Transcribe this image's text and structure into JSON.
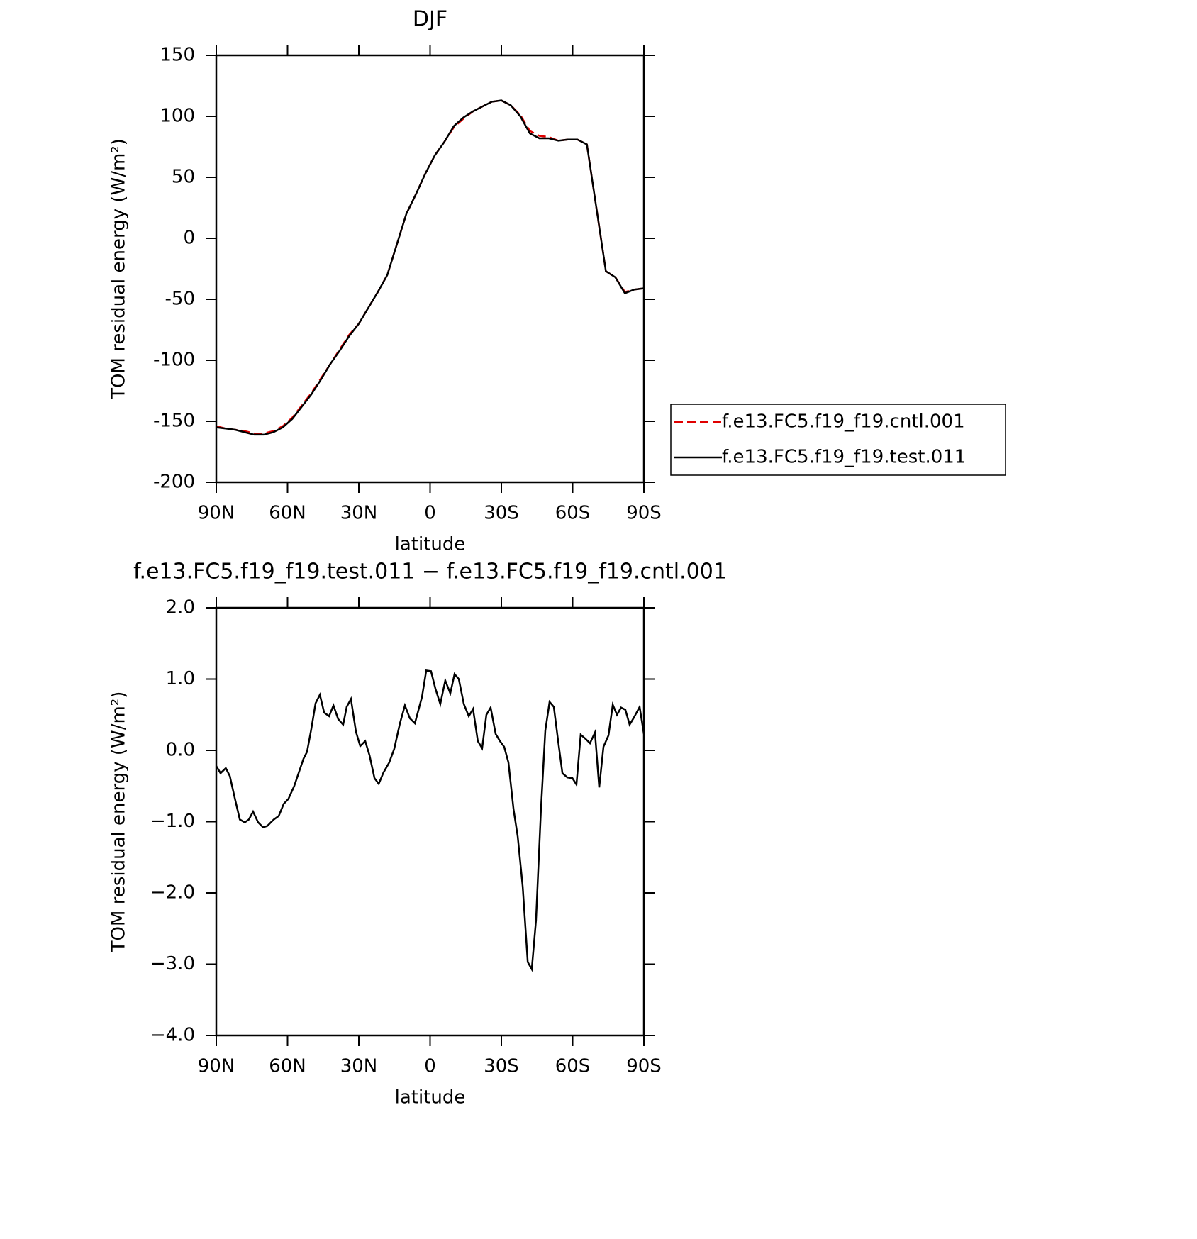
{
  "chart_data": [
    {
      "type": "line",
      "title": "DJF",
      "xlabel": "latitude",
      "ylabel": "TOM residual energy (W/m²)",
      "x": [
        90,
        86,
        82,
        78,
        74,
        70,
        66,
        62,
        58,
        54,
        50,
        46,
        42,
        38,
        34,
        30,
        26,
        22,
        18,
        14,
        10,
        6,
        2,
        -2,
        -6,
        -10,
        -14,
        -18,
        -22,
        -26,
        -30,
        -34,
        -38,
        -42,
        -46,
        -50,
        -54,
        -58,
        -62,
        -66,
        -70,
        -74,
        -78,
        -82,
        -86,
        -90
      ],
      "series": [
        {
          "name": "f.e13.FC5.f19_f19.cntl.001",
          "color": "#e00000",
          "dash": true,
          "values": [
            -154,
            -156,
            -157,
            -158,
            -160,
            -160,
            -158,
            -154,
            -147,
            -137,
            -127,
            -115,
            -103,
            -91,
            -79,
            -70,
            -57,
            -44,
            -30,
            -5,
            20,
            36,
            53,
            68,
            79,
            91,
            98,
            104,
            108,
            112,
            113,
            109,
            101,
            88,
            84,
            83,
            80,
            81,
            81,
            77,
            25,
            -27,
            -32,
            -44,
            -42,
            -41
          ]
        },
        {
          "name": "f.e13.FC5.f19_f19.test.011",
          "color": "#000000",
          "dash": false,
          "values": [
            -155,
            -156,
            -157,
            -159,
            -161,
            -161,
            -159,
            -155,
            -148,
            -138,
            -128,
            -116,
            -103,
            -92,
            -80,
            -70,
            -57,
            -44,
            -30,
            -5,
            20,
            36,
            53,
            68,
            79,
            92,
            99,
            104,
            108,
            112,
            113,
            109,
            100,
            86,
            82,
            82,
            80,
            81,
            81,
            77,
            25,
            -27,
            -32,
            -45,
            -42,
            -41
          ]
        }
      ],
      "xlim": [
        90,
        -90
      ],
      "xticks": [
        {
          "value": 90,
          "label": "90N"
        },
        {
          "value": 60,
          "label": "60N"
        },
        {
          "value": 30,
          "label": "30N"
        },
        0,
        {
          "value": -30,
          "label": "30S"
        },
        {
          "value": -60,
          "label": "60S"
        },
        {
          "value": -90,
          "label": "90S"
        }
      ],
      "ylim": [
        -200,
        150
      ],
      "yticks": [
        -200,
        -150,
        -100,
        -50,
        0,
        50,
        100,
        150
      ],
      "legend": "right"
    },
    {
      "type": "line",
      "title": "f.e13.FC5.f19_f19.test.011 − f.e13.FC5.f19_f19.cntl.001",
      "xlabel": "latitude",
      "ylabel": "TOM residual energy (W/m²)",
      "x": [
        90,
        88.2,
        86,
        84.3,
        82.2,
        80.1,
        78,
        76.3,
        74.5,
        72.4,
        70.3,
        68.5,
        65.8,
        63.7,
        61.6,
        59.6,
        57.2,
        53.3,
        51.8,
        50,
        48.2,
        46.4,
        44.6,
        42.5,
        40.7,
        38.7,
        36.6,
        35.1,
        33.3,
        31.2,
        29.4,
        27.3,
        25.5,
        23.4,
        21.6,
        19.6,
        17.2,
        15.1,
        12.7,
        10.6,
        8.5,
        6.4,
        3.4,
        1.6,
        -0.4,
        -2.2,
        -4.3,
        -6.4,
        -8.5,
        -10.3,
        -12.1,
        -14.2,
        -16.3,
        -18.1,
        -20.1,
        -21.9,
        -23.7,
        -25.5,
        -27.6,
        -29.4,
        -31.2,
        -33,
        -35.1,
        -36.9,
        -39,
        -41.1,
        -42.8,
        -44.6,
        -46.7,
        -48.5,
        -50.3,
        -52.1,
        -53.9,
        -55.7,
        -57.8,
        -59.9,
        -61.6,
        -63.4,
        -65.5,
        -67.3,
        -69.4,
        -71.2,
        -73,
        -75.1,
        -76.9,
        -78.7,
        -80.4,
        -82.2,
        -84,
        -85.8,
        -88.2,
        -90
      ],
      "series": [
        {
          "name": null,
          "color": "#000000",
          "dash": false,
          "values": [
            -0.22,
            -0.32,
            -0.25,
            -0.36,
            -0.67,
            -0.97,
            -1.01,
            -0.97,
            -0.86,
            -1.01,
            -1.08,
            -1.06,
            -0.97,
            -0.92,
            -0.75,
            -0.68,
            -0.5,
            -0.12,
            -0.02,
            0.3,
            0.66,
            0.78,
            0.53,
            0.48,
            0.63,
            0.44,
            0.36,
            0.61,
            0.72,
            0.26,
            0.06,
            0.13,
            -0.07,
            -0.39,
            -0.47,
            -0.31,
            -0.17,
            0.02,
            0.38,
            0.63,
            0.45,
            0.38,
            0.75,
            1.12,
            1.11,
            0.87,
            0.65,
            0.98,
            0.8,
            1.07,
            1.0,
            0.65,
            0.48,
            0.58,
            0.13,
            0.03,
            0.5,
            0.6,
            0.23,
            0.13,
            0.05,
            -0.17,
            -0.82,
            -1.21,
            -1.91,
            -2.97,
            -3.07,
            -2.38,
            -0.82,
            0.28,
            0.68,
            0.61,
            0.13,
            -0.32,
            -0.38,
            -0.39,
            -0.48,
            0.22,
            0.16,
            0.1,
            0.25,
            -0.52,
            0.05,
            0.21,
            0.64,
            0.5,
            0.6,
            0.57,
            0.36,
            0.46,
            0.61,
            0.23
          ]
        }
      ],
      "xlim": [
        90,
        -90
      ],
      "xticks": [
        {
          "value": 90,
          "label": "90N"
        },
        {
          "value": 60,
          "label": "60N"
        },
        {
          "value": 30,
          "label": "30N"
        },
        0,
        {
          "value": -30,
          "label": "30S"
        },
        {
          "value": -60,
          "label": "60S"
        },
        {
          "value": -90,
          "label": "90S"
        }
      ],
      "ylim": [
        -4,
        2
      ],
      "yticks": [
        {
          "value": -4,
          "label": "−4.0"
        },
        {
          "value": -3,
          "label": "−3.0"
        },
        {
          "value": -2,
          "label": "−2.0"
        },
        {
          "value": -1,
          "label": "−1.0"
        },
        {
          "value": 0,
          "label": "0.0"
        },
        {
          "value": 1,
          "label": "1.0"
        },
        {
          "value": 2,
          "label": "2.0"
        }
      ]
    }
  ]
}
